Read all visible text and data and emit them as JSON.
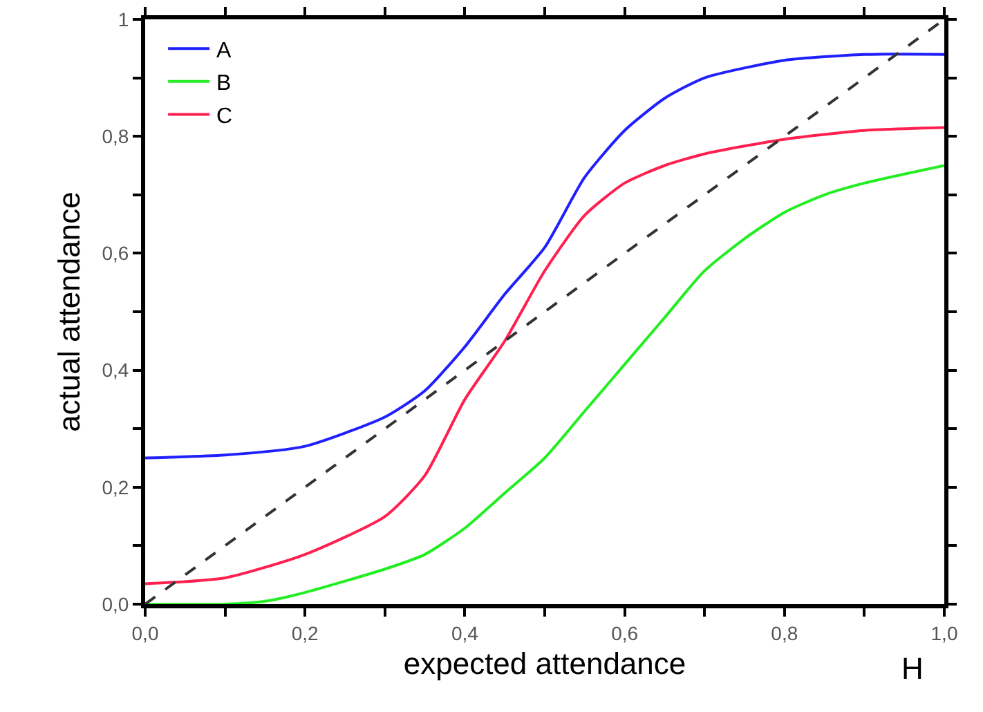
{
  "chart_data": {
    "type": "line",
    "xlabel": "expected attendance",
    "ylabel": "actual attendance",
    "annotations": [
      "H"
    ],
    "xlim": [
      0,
      1
    ],
    "ylim": [
      0,
      1
    ],
    "xticks": [
      {
        "value": 0,
        "label": "0,0"
      },
      {
        "value": 0.1,
        "label": null
      },
      {
        "value": 0.2,
        "label": "0,2"
      },
      {
        "value": 0.3,
        "label": null
      },
      {
        "value": 0.4,
        "label": "0,4"
      },
      {
        "value": 0.5,
        "label": null
      },
      {
        "value": 0.6,
        "label": "0,6"
      },
      {
        "value": 0.7,
        "label": null
      },
      {
        "value": 0.8,
        "label": "0,8"
      },
      {
        "value": 0.9,
        "label": null
      },
      {
        "value": 1,
        "label": "1,0"
      }
    ],
    "yticks": [
      {
        "value": 0,
        "label": "0,0"
      },
      {
        "value": 0.1,
        "label": null
      },
      {
        "value": 0.2,
        "label": "0,2"
      },
      {
        "value": 0.3,
        "label": null
      },
      {
        "value": 0.4,
        "label": "0,4"
      },
      {
        "value": 0.5,
        "label": null
      },
      {
        "value": 0.6,
        "label": "0,6"
      },
      {
        "value": 0.7,
        "label": null
      },
      {
        "value": 0.8,
        "label": "0,8"
      },
      {
        "value": 0.9,
        "label": null
      },
      {
        "value": 1,
        "label": "1"
      }
    ],
    "grid": false,
    "legend": "top left",
    "marker": "none",
    "series": [
      {
        "name": "A",
        "color": "#2020ff",
        "x": [
          0,
          0.1,
          0.2,
          0.3,
          0.35,
          0.4,
          0.45,
          0.5,
          0.55,
          0.6,
          0.65,
          0.7,
          0.8,
          0.9,
          1
        ],
        "values": [
          0.25,
          0.255,
          0.27,
          0.32,
          0.365,
          0.44,
          0.53,
          0.61,
          0.73,
          0.81,
          0.865,
          0.9,
          0.93,
          0.94,
          0.94
        ]
      },
      {
        "name": "B",
        "color": "#22ee22",
        "x": [
          0,
          0.1,
          0.15,
          0.2,
          0.3,
          0.35,
          0.4,
          0.45,
          0.5,
          0.55,
          0.6,
          0.65,
          0.7,
          0.75,
          0.8,
          0.85,
          0.9,
          1
        ],
        "values": [
          0,
          0,
          0.005,
          0.02,
          0.06,
          0.085,
          0.13,
          0.19,
          0.25,
          0.33,
          0.41,
          0.49,
          0.57,
          0.625,
          0.67,
          0.7,
          0.72,
          0.75
        ]
      },
      {
        "name": "C",
        "color": "#ff2050",
        "x": [
          0,
          0.1,
          0.2,
          0.3,
          0.35,
          0.4,
          0.45,
          0.5,
          0.55,
          0.6,
          0.65,
          0.7,
          0.8,
          0.9,
          1
        ],
        "values": [
          0.035,
          0.045,
          0.085,
          0.15,
          0.22,
          0.35,
          0.45,
          0.57,
          0.665,
          0.72,
          0.75,
          0.77,
          0.795,
          0.81,
          0.815
        ]
      },
      {
        "color": "#333333",
        "line_style": "dashed",
        "x": [
          0,
          1
        ],
        "values": [
          0,
          1
        ]
      }
    ]
  }
}
